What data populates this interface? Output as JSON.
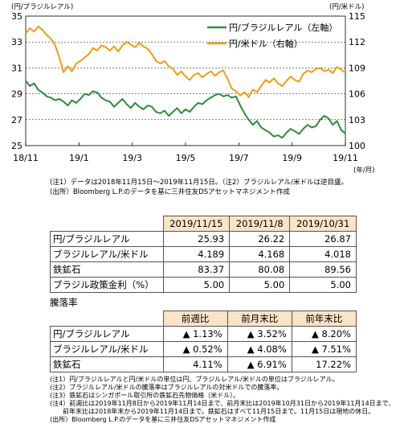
{
  "chart_data": {
    "type": "line",
    "left_axis_unit": "(円/ブラジルレアル)",
    "right_axis_unit": "(円/米ドル)",
    "x_unit": "(年/月)",
    "x_ticks": [
      "18/11",
      "19/1",
      "19/3",
      "19/5",
      "19/7",
      "19/9",
      "19/11"
    ],
    "left_ticks": [
      25,
      27,
      29,
      31,
      33,
      35
    ],
    "right_ticks": [
      100,
      103,
      106,
      109,
      112,
      115
    ],
    "ylim_left": [
      25,
      35
    ],
    "ylim_right": [
      100,
      115
    ],
    "legend_position": "top-right",
    "series": [
      {
        "name": "円/ブラジルレアル（左軸）",
        "axis": "left",
        "color": "#2e8b3c",
        "values": [
          30.0,
          29.6,
          29.8,
          29.3,
          29.1,
          28.8,
          28.7,
          28.5,
          28.6,
          28.4,
          28.1,
          28.5,
          28.3,
          28.6,
          29.0,
          28.9,
          29.2,
          29.1,
          28.7,
          28.5,
          28.4,
          28.0,
          28.3,
          28.6,
          28.2,
          27.9,
          28.3,
          28.0,
          27.8,
          28.1,
          28.0,
          27.6,
          27.5,
          27.7,
          27.3,
          27.6,
          27.9,
          27.5,
          27.8,
          27.6,
          28.0,
          28.3,
          28.2,
          28.5,
          28.7,
          28.9,
          29.0,
          28.8,
          28.9,
          28.7,
          28.8,
          28.1,
          27.5,
          27.0,
          26.6,
          26.9,
          26.4,
          26.2,
          26.0,
          25.7,
          25.8,
          25.6,
          26.0,
          26.3,
          26.1,
          25.9,
          26.3,
          26.6,
          26.4,
          26.5,
          27.0,
          27.3,
          27.1,
          26.6,
          26.9,
          26.2,
          25.93
        ]
      },
      {
        "name": "円/米ドル（右軸）",
        "axis": "right",
        "color": "#f39c12",
        "values": [
          113.0,
          113.6,
          113.2,
          113.8,
          113.4,
          112.8,
          112.4,
          111.6,
          110.2,
          108.5,
          109.2,
          108.6,
          109.5,
          109.8,
          110.2,
          110.6,
          111.3,
          111.0,
          111.6,
          111.4,
          111.0,
          111.5,
          110.9,
          111.6,
          112.0,
          111.7,
          111.4,
          111.9,
          111.5,
          111.2,
          110.6,
          109.8,
          109.5,
          109.8,
          109.2,
          108.9,
          108.2,
          108.6,
          108.0,
          107.6,
          108.2,
          108.4,
          107.9,
          108.3,
          108.6,
          108.1,
          108.5,
          108.7,
          107.7,
          106.6,
          106.3,
          105.8,
          106.2,
          105.6,
          106.5,
          106.2,
          106.9,
          107.6,
          107.3,
          107.8,
          107.2,
          106.9,
          107.5,
          108.0,
          107.6,
          107.4,
          108.3,
          108.7,
          108.5,
          108.9,
          109.0,
          108.6,
          108.8,
          108.4,
          109.1,
          108.8,
          108.45
        ]
      }
    ]
  },
  "notes": {
    "line1": "(注1）データは2018年11月15日～2019年11月15日。（注2）ブラジルレアル/米ドルは逆目盛。",
    "line2": "(出所）Bloomberg L.P.のデータを基に三井住友DSアセットマネジメント作成"
  },
  "table1": {
    "headers": [
      "2019/11/15",
      "2019/11/8",
      "2019/10/31"
    ],
    "rows": [
      {
        "label": "円/ブラジルレアル",
        "values": [
          "25.93",
          "26.22",
          "26.87"
        ]
      },
      {
        "label": "ブラジルレアル/米ドル",
        "values": [
          "4.189",
          "4.168",
          "4.018"
        ]
      },
      {
        "label": "鉄鉱石",
        "values": [
          "83.37",
          "80.08",
          "89.56"
        ]
      },
      {
        "label": "ブラジル政策金利（%）",
        "values": [
          "5.00",
          "5.00",
          "5.00"
        ]
      }
    ]
  },
  "table2": {
    "title": "騰落率",
    "headers": [
      "前週比",
      "前月末比",
      "前年末比"
    ],
    "rows": [
      {
        "label": "円/ブラジルレアル",
        "values": [
          "▲ 1.13%",
          "▲ 3.52%",
          "▲ 8.20%"
        ]
      },
      {
        "label": "ブラジルレアル/米ドル",
        "values": [
          "▲ 0.52%",
          "▲ 4.08%",
          "▲ 7.51%"
        ]
      },
      {
        "label": "鉄鉱石",
        "values": [
          "4.11%",
          "▲ 6.91%",
          "17.22%"
        ]
      }
    ]
  },
  "footnotes": [
    "(注1）円/ブラジルレアルと円/米ドルの単位は円、ブラジルレアル/米ドルの単位はブラジルレアル。",
    "(注2）ブラジルレアル/米ドルの騰落率はブラジルレアルの対米ドルでの騰落率。",
    "(注3）鉄鉱石はシンガポール取引所の鉄鉱石先物価格（米ドル）。",
    "(注4）前週比は2019年11月8日から2019年11月14日まで、前月末比は2019年10月31日から2019年11月14日まで、",
    "　　前年末比は2018年末から2019年11月14日まで。鉄鉱石はすべて11月15日まで。11月15日は現地の休日。",
    "(出所）Bloomberg L.P.のデータを基に三井住友DSアセットマネジメント作成"
  ]
}
